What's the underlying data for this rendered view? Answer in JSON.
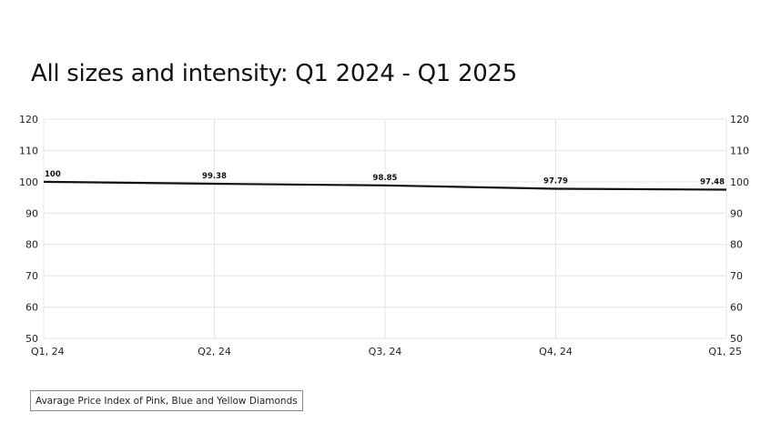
{
  "colors": {
    "line": "#111111",
    "grid": "#e4e4e4",
    "text": "#222222",
    "background": "#ffffff"
  },
  "chart_data": {
    "type": "line",
    "title": "All sizes and intensity: Q1 2024 - Q1 2025",
    "categories": [
      "Q1, 24",
      "Q2, 24",
      "Q3, 24",
      "Q4, 24",
      "Q1, 25"
    ],
    "series": [
      {
        "name": "Avarage Price Index of Pink, Blue and Yellow Diamonds",
        "values": [
          100,
          99.38,
          98.85,
          97.79,
          97.48
        ],
        "labels": [
          "100",
          "99.38",
          "98.85",
          "97.79",
          "97.48"
        ]
      }
    ],
    "yticks": [
      120,
      110,
      100,
      90,
      80,
      70,
      60,
      50
    ],
    "ylim": [
      50,
      120
    ],
    "y_axis_sides": [
      "left",
      "right"
    ],
    "grid": true,
    "legend_position": "bottom-left"
  }
}
